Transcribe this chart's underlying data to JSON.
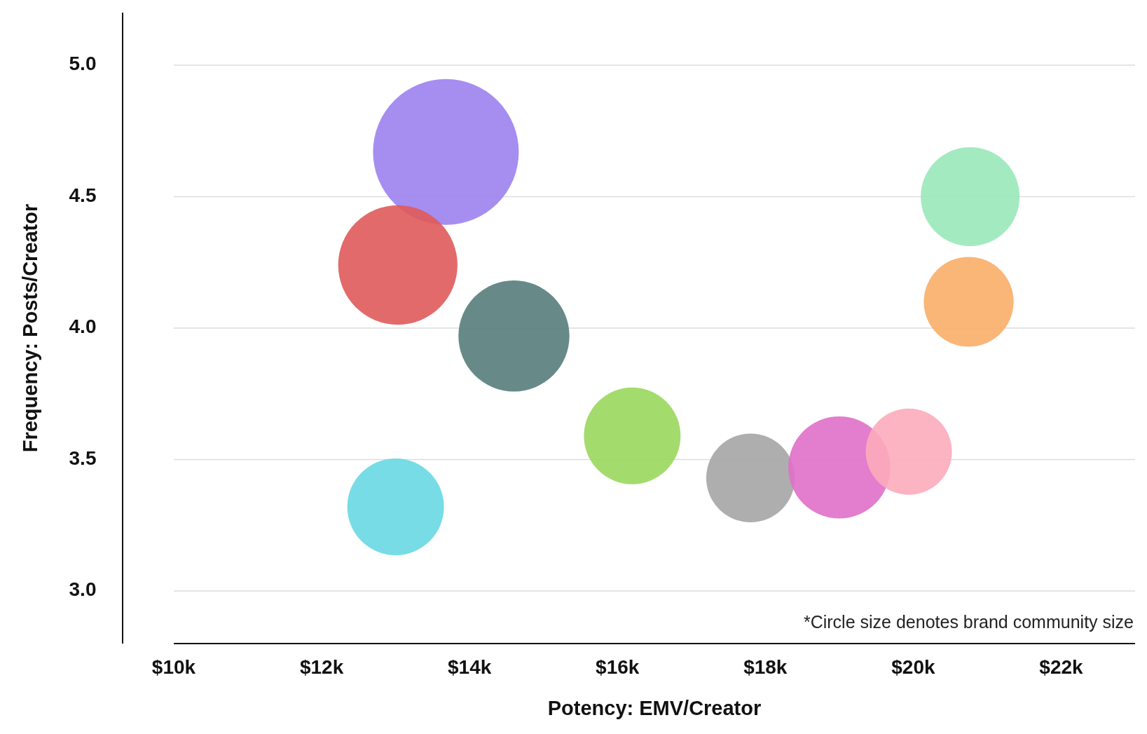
{
  "chart_data": {
    "type": "bubble",
    "xlabel": "Potency: EMV/Creator",
    "ylabel": "Frequency: Posts/Creator",
    "annotations": [
      "*Circle size denotes brand community size"
    ],
    "xlim": [
      10,
      23
    ],
    "xticks": [
      {
        "value": 10,
        "label": "$10k"
      },
      {
        "value": 12,
        "label": "$12k"
      },
      {
        "value": 14,
        "label": "$14k"
      },
      {
        "value": 16,
        "label": "$16k"
      },
      {
        "value": 18,
        "label": "$18k"
      },
      {
        "value": 20,
        "label": "$20k"
      },
      {
        "value": 22,
        "label": "$22k"
      }
    ],
    "ylim": [
      2.8,
      5.2
    ],
    "yticks": [
      {
        "value": 3,
        "label": "3.0"
      },
      {
        "value": 3.5,
        "label": "3.5"
      },
      {
        "value": 4,
        "label": "4.0"
      },
      {
        "value": 4.5,
        "label": "4.5"
      },
      {
        "value": 5,
        "label": "5.0"
      }
    ],
    "grid": "y",
    "series": [
      {
        "x": [
          13.68,
          13.03,
          14.6,
          13.0,
          16.2,
          17.8,
          19.0,
          19.94,
          20.77,
          20.75
        ],
        "values": [
          4.67,
          4.24,
          3.97,
          3.32,
          3.59,
          3.43,
          3.47,
          3.53,
          4.5,
          4.1
        ],
        "sizes": [
          1,
          0.67,
          0.58,
          0.44,
          0.44,
          0.37,
          0.49,
          0.35,
          0.46,
          0.38
        ],
        "colors": [
          "#9b82ee",
          "#e05a5a",
          "#577d7c",
          "#68d8e3",
          "#9ad75d",
          "#a5a5a5",
          "#e06fc8",
          "#fcabbb",
          "#9ae8ba",
          "#f8ae68"
        ]
      }
    ]
  }
}
